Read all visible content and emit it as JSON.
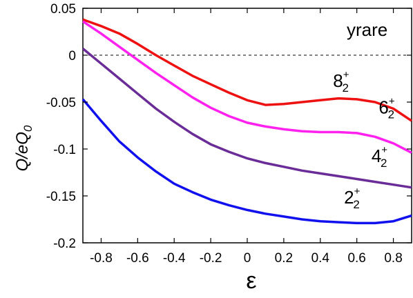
{
  "chart_data": {
    "type": "line",
    "title": "",
    "xlabel": "ε",
    "ylabel": "Q/eQ",
    "ylabel_sub": "0",
    "xlim": [
      -0.9,
      0.9
    ],
    "ylim": [
      -0.2,
      0.05
    ],
    "xticks": [
      "-0.8",
      "-0.6",
      "-0.4",
      "-0.2",
      "0",
      "0.2",
      "0.4",
      "0.6",
      "0.8"
    ],
    "xtick_values": [
      -0.8,
      -0.6,
      -0.4,
      -0.2,
      0,
      0.2,
      0.4,
      0.6,
      0.8
    ],
    "yticks": [
      "0.05",
      "0",
      "-0.05",
      "-0.1",
      "-0.15",
      "-0.2"
    ],
    "ytick_values": [
      0.05,
      0,
      -0.05,
      -0.1,
      -0.15,
      -0.2
    ],
    "grid": false,
    "reference_line": {
      "y": 0,
      "style": "dashed",
      "color": "#000000"
    },
    "annotation": "yrare",
    "x": [
      -0.9,
      -0.8,
      -0.7,
      -0.6,
      -0.5,
      -0.4,
      -0.3,
      -0.2,
      -0.1,
      0.0,
      0.1,
      0.2,
      0.3,
      0.4,
      0.5,
      0.6,
      0.7,
      0.8,
      0.9
    ],
    "series": [
      {
        "label_main": "8",
        "label_sub": "2",
        "label_sup": "+",
        "color": "#ee1111",
        "values": [
          0.038,
          0.031,
          0.023,
          0.012,
          0.0,
          -0.011,
          -0.022,
          -0.031,
          -0.04,
          -0.048,
          -0.053,
          -0.052,
          -0.05,
          -0.048,
          -0.046,
          -0.047,
          -0.05,
          -0.057,
          -0.07
        ]
      },
      {
        "label_main": "6",
        "label_sub": "2",
        "label_sup": "+",
        "color": "#ff22ee",
        "values": [
          0.036,
          0.023,
          0.009,
          -0.005,
          -0.019,
          -0.032,
          -0.045,
          -0.056,
          -0.065,
          -0.072,
          -0.076,
          -0.079,
          -0.081,
          -0.082,
          -0.082,
          -0.083,
          -0.087,
          -0.094,
          -0.104
        ]
      },
      {
        "label_main": "4",
        "label_sub": "2",
        "label_sup": "+",
        "color": "#6a2c96",
        "values": [
          0.007,
          -0.009,
          -0.025,
          -0.041,
          -0.057,
          -0.071,
          -0.084,
          -0.095,
          -0.103,
          -0.11,
          -0.115,
          -0.119,
          -0.123,
          -0.126,
          -0.129,
          -0.132,
          -0.135,
          -0.138,
          -0.141
        ]
      },
      {
        "label_main": "2",
        "label_sub": "2",
        "label_sup": "+",
        "color": "#1111ee",
        "values": [
          -0.047,
          -0.07,
          -0.092,
          -0.109,
          -0.124,
          -0.137,
          -0.146,
          -0.154,
          -0.16,
          -0.165,
          -0.169,
          -0.172,
          -0.175,
          -0.177,
          -0.178,
          -0.179,
          -0.179,
          -0.177,
          -0.171
        ]
      }
    ],
    "series_labels_at": [
      {
        "x": 0.47,
        "y": -0.034
      },
      {
        "x": 0.72,
        "y": -0.062
      },
      {
        "x": 0.68,
        "y": -0.114
      },
      {
        "x": 0.53,
        "y": -0.158
      }
    ]
  }
}
